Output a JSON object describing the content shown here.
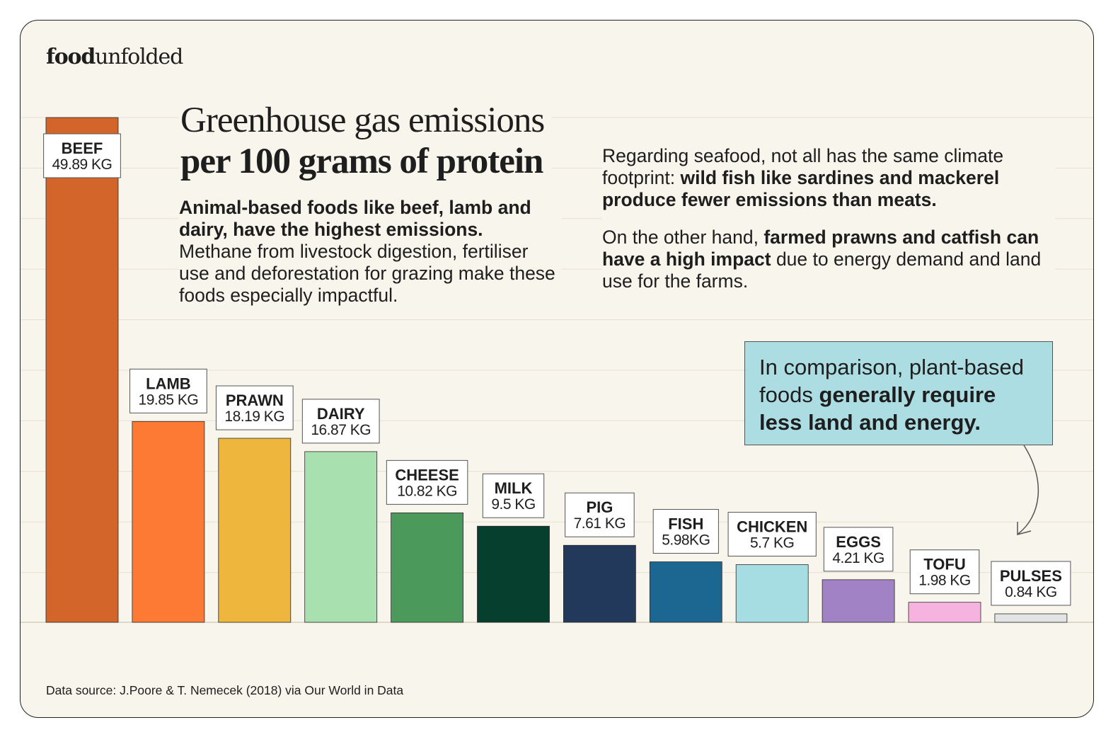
{
  "brand": {
    "logo_bold": "food",
    "logo_regular": "unfolded"
  },
  "heading": {
    "line1": "Greenhouse gas emissions",
    "line2": "per 100 grams of protein"
  },
  "left_text": {
    "bold": "Animal-based foods like beef, lamb and dairy, have the highest emissions.",
    "regular": " Methane from livestock digestion, fertiliser use and deforestation for grazing make these foods especially impactful."
  },
  "right_text": {
    "p1_regular": "Regarding seafood, not all has the same climate footprint: ",
    "p1_bold": "wild fish like sardines and mackerel produce fewer emissions than meats.",
    "p2_regular_a": "On the other hand, ",
    "p2_bold": "farmed prawns and catfish can have a high impact",
    "p2_regular_b": " due to energy demand and land use for the farms."
  },
  "callout": {
    "regular": "In comparison, plant-based foods ",
    "bold": "generally require less land and energy."
  },
  "source": "Data source: J.Poore & T. Nemecek (2018) via Our World in Data",
  "chart_data": {
    "type": "bar",
    "title": "Greenhouse gas emissions per 100 grams of protein",
    "unit": "KG",
    "ylim": [
      0,
      49.89
    ],
    "grid": true,
    "categories": [
      "BEEF",
      "LAMB",
      "PRAWN",
      "DAIRY",
      "CHEESE",
      "MILK",
      "PIG",
      "FISH",
      "CHICKEN",
      "EGGS",
      "TOFU",
      "PULSES"
    ],
    "values": [
      49.89,
      19.85,
      18.19,
      16.87,
      10.82,
      9.5,
      7.61,
      5.98,
      5.7,
      4.21,
      1.98,
      0.84
    ],
    "value_labels": [
      "49.89 KG",
      "19.85 KG",
      "18.19 KG",
      "16.87 KG",
      "10.82 KG",
      "9.5 KG",
      "7.61 KG",
      "5.98KG",
      "5.7 KG",
      "4.21 KG",
      "1.98 KG",
      "0.84 KG"
    ],
    "colors": [
      "#d4652a",
      "#fc7a33",
      "#efb63d",
      "#a8e0b0",
      "#4b9a5b",
      "#073f2f",
      "#22395b",
      "#1c6791",
      "#a6dde2",
      "#a182c5",
      "#f6b3df",
      "#e1e3e5"
    ]
  }
}
